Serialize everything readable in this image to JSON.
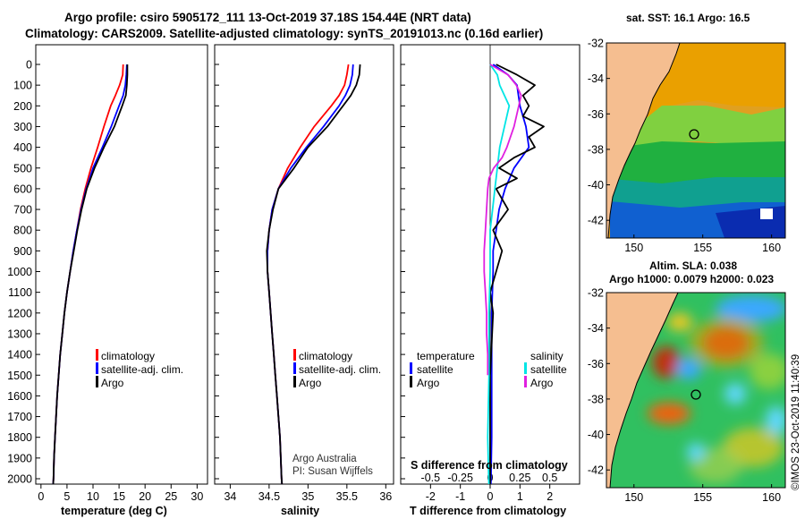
{
  "header": {
    "line1": "Argo profile: csiro 5905172_111 13-Oct-2019 37.18S 154.44E (NRT data)",
    "line2": "Climatology: CARS2009. Satellite-adjusted climatology: synTS_20191013.nc (0.16d earlier)"
  },
  "credit": {
    "line1": "Argo Australia",
    "line2": "PI: Susan Wijffels"
  },
  "watermark": "©IMOS 23-Oct-2019 11:40:39",
  "colors": {
    "climatology": "#ff0000",
    "satellite": "#0000ff",
    "argo": "#000000",
    "sal_satellite": "#00e5e5",
    "sal_argo": "#e020e0",
    "land": "#f5be90"
  },
  "chart_data": [
    {
      "id": "temperature",
      "type": "line",
      "xlabel": "temperature (deg C)",
      "ylabel": "",
      "xlim": [
        -1,
        32
      ],
      "ylim": [
        2080,
        0
      ],
      "xticks": [
        0,
        5,
        10,
        15,
        20,
        25,
        30
      ],
      "yticks": [
        0,
        100,
        200,
        300,
        400,
        500,
        600,
        700,
        800,
        900,
        1000,
        1100,
        1200,
        1300,
        1400,
        1500,
        1600,
        1700,
        1800,
        1900,
        2000
      ],
      "ytick_labels": [
        "0",
        "100",
        "200",
        "300",
        "400",
        "500",
        "600",
        "700",
        "800",
        "900",
        "1000",
        "1100",
        "1200",
        "1300",
        "1400",
        "1500",
        "1600",
        "1700",
        "1800",
        "1900",
        "2000"
      ],
      "legend": [
        "climatology",
        "satellite-adj. clim.",
        "Argo"
      ],
      "series": [
        {
          "name": "climatology",
          "color": "#ff0000",
          "depth": [
            0,
            50,
            100,
            150,
            200,
            300,
            400,
            500,
            600,
            700,
            800,
            900,
            1000,
            1100,
            1200,
            1300,
            1400,
            1500,
            1600,
            1700,
            1800,
            1900,
            2000,
            2050
          ],
          "values": [
            15.8,
            15.7,
            15.1,
            14.3,
            13.4,
            12.1,
            10.9,
            9.6,
            8.5,
            7.6,
            6.9,
            6.2,
            5.6,
            5.0,
            4.5,
            4.1,
            3.7,
            3.4,
            3.1,
            2.9,
            2.7,
            2.5,
            2.4,
            2.3
          ]
        },
        {
          "name": "satellite-adj. clim.",
          "color": "#0000ff",
          "depth": [
            0,
            50,
            100,
            150,
            200,
            300,
            400,
            500,
            600,
            700,
            800,
            900,
            1000,
            1100,
            1200,
            1300,
            1400,
            1500,
            1600,
            1700,
            1800,
            1900,
            2000,
            2050
          ],
          "values": [
            16.5,
            16.4,
            16.2,
            15.8,
            15.0,
            13.5,
            11.8,
            10.0,
            8.7,
            7.7,
            6.9,
            6.2,
            5.6,
            5.0,
            4.5,
            4.1,
            3.7,
            3.4,
            3.1,
            2.9,
            2.7,
            2.5,
            2.4,
            2.3
          ]
        },
        {
          "name": "Argo",
          "color": "#000000",
          "depth": [
            0,
            50,
            100,
            150,
            200,
            300,
            400,
            500,
            600,
            700,
            800,
            900,
            1000,
            1100,
            1200,
            1300,
            1400,
            1500,
            1600,
            1700,
            1800,
            1900,
            2000,
            2050
          ],
          "values": [
            16.6,
            16.6,
            16.5,
            16.3,
            15.6,
            14.1,
            12.1,
            10.3,
            8.8,
            7.8,
            7.0,
            6.3,
            5.6,
            5.0,
            4.5,
            4.1,
            3.7,
            3.4,
            3.1,
            2.9,
            2.7,
            2.5,
            2.4,
            2.3
          ]
        }
      ]
    },
    {
      "id": "salinity",
      "type": "line",
      "xlabel": "salinity",
      "xlim": [
        33.8,
        36.1
      ],
      "ylim": [
        2080,
        0
      ],
      "xticks": [
        34,
        34.5,
        35,
        35.5,
        36
      ],
      "xtick_labels": [
        "34",
        "34.5",
        "35",
        "35.5",
        "36"
      ],
      "legend": [
        "climatology",
        "satellite-adj. clim.",
        "Argo"
      ],
      "series": [
        {
          "name": "climatology",
          "color": "#ff0000",
          "depth": [
            0,
            50,
            100,
            150,
            200,
            300,
            400,
            500,
            600,
            700,
            800,
            900,
            1000,
            1100,
            1200,
            1300,
            1400,
            1500,
            1600,
            1700,
            1800,
            1900,
            2000,
            2050
          ],
          "values": [
            35.52,
            35.5,
            35.47,
            35.4,
            35.3,
            35.08,
            34.9,
            34.74,
            34.62,
            34.54,
            34.5,
            34.48,
            34.48,
            34.5,
            34.52,
            34.54,
            34.56,
            34.58,
            34.6,
            34.62,
            34.64,
            34.65,
            34.66,
            34.67
          ]
        },
        {
          "name": "satellite-adj. clim.",
          "color": "#0000ff",
          "depth": [
            0,
            50,
            100,
            150,
            200,
            300,
            400,
            500,
            600,
            700,
            800,
            900,
            1000,
            1100,
            1200,
            1300,
            1400,
            1500,
            1600,
            1700,
            1800,
            1900,
            2000,
            2050
          ],
          "values": [
            35.58,
            35.57,
            35.54,
            35.48,
            35.4,
            35.2,
            34.98,
            34.78,
            34.62,
            34.54,
            34.5,
            34.48,
            34.48,
            34.5,
            34.52,
            34.54,
            34.56,
            34.58,
            34.6,
            34.62,
            34.64,
            34.65,
            34.66,
            34.67
          ]
        },
        {
          "name": "Argo",
          "color": "#000000",
          "depth": [
            0,
            50,
            100,
            150,
            200,
            300,
            400,
            500,
            600,
            700,
            800,
            900,
            1000,
            1100,
            1200,
            1300,
            1400,
            1500,
            1600,
            1700,
            1800,
            1900,
            2000,
            2050
          ],
          "values": [
            35.67,
            35.66,
            35.62,
            35.55,
            35.45,
            35.25,
            35.0,
            34.82,
            34.62,
            34.55,
            34.5,
            34.47,
            34.48,
            34.5,
            34.52,
            34.54,
            34.56,
            34.58,
            34.6,
            34.62,
            34.64,
            34.65,
            34.66,
            34.67
          ]
        }
      ]
    },
    {
      "id": "difference",
      "type": "line",
      "xlabel": "T difference from climatology",
      "xlabel2": "S difference from climatology",
      "xlim": [
        -3,
        3
      ],
      "ylim": [
        2080,
        0
      ],
      "xticks": [
        -2,
        -1,
        0,
        1,
        2
      ],
      "xtick_labels": [
        "-2",
        "-1",
        "0",
        "1",
        "2"
      ],
      "s_ticks": [
        -0.5,
        -0.25,
        0,
        0.25,
        0.5
      ],
      "s_tick_labels": [
        "-0.5",
        "-0.25",
        "0",
        "0.25",
        "0.5"
      ],
      "legend_titles": [
        "temperature",
        "salinity"
      ],
      "legend_t": [
        "satellite",
        "Argo"
      ],
      "legend_s": [
        "satellite",
        "Argo"
      ],
      "series": [
        {
          "name": "T satellite",
          "color": "#0000ff",
          "depth": [
            0,
            50,
            100,
            200,
            300,
            400,
            500,
            600,
            700,
            800,
            900,
            1000,
            1200,
            1500,
            1800,
            2050
          ],
          "values": [
            0.1,
            0.6,
            0.9,
            1.0,
            1.2,
            1.3,
            0.8,
            0.5,
            0.3,
            0.2,
            0.1,
            0.1,
            0.05,
            0.05,
            0.05,
            0.02
          ]
        },
        {
          "name": "T Argo",
          "color": "#000000",
          "depth": [
            0,
            50,
            100,
            150,
            200,
            250,
            300,
            350,
            400,
            450,
            500,
            550,
            600,
            700,
            800,
            900,
            1000,
            1100,
            1200,
            1500,
            1800,
            2050
          ],
          "values": [
            0.2,
            0.9,
            1.5,
            1.1,
            1.3,
            1.1,
            1.8,
            1.3,
            1.5,
            0.8,
            0.3,
            0.9,
            0.2,
            0.6,
            0.1,
            0.4,
            0.2,
            0.0,
            0.1,
            0.0,
            0.0,
            0.0
          ]
        },
        {
          "name": "S satellite",
          "color": "#00e5e5",
          "depth": [
            0,
            50,
            100,
            200,
            300,
            400,
            500,
            600,
            700,
            800,
            900,
            1000,
            1200,
            1500,
            1800,
            2050
          ],
          "values": [
            0.0,
            0.06,
            0.08,
            0.16,
            0.12,
            0.08,
            0.06,
            0.04,
            0.02,
            0.0,
            0.0,
            0.0,
            -0.01,
            -0.01,
            -0.02,
            -0.01
          ]
        },
        {
          "name": "S Argo",
          "color": "#e020e0",
          "depth": [
            0,
            50,
            100,
            150,
            200,
            300,
            400,
            450,
            500,
            550,
            600,
            700,
            800,
            900,
            1000,
            1100,
            1200,
            1300,
            1400,
            1500
          ],
          "values": [
            0.0,
            0.15,
            0.22,
            0.26,
            0.24,
            0.2,
            0.14,
            0.1,
            0.03,
            -0.01,
            -0.02,
            -0.03,
            -0.04,
            -0.05,
            -0.05,
            -0.04,
            -0.03,
            -0.03,
            -0.02,
            -0.02
          ]
        }
      ]
    },
    {
      "id": "sst_map",
      "type": "heatmap",
      "title": "sat. SST: 16.1  Argo: 16.5",
      "xticks": [
        150,
        155,
        160
      ],
      "yticks": [
        -32,
        -34,
        -36,
        -38,
        -40,
        -42
      ],
      "xlim": [
        148,
        161
      ],
      "ylim": [
        -43,
        -32
      ],
      "argo_position": {
        "lon": 154.44,
        "lat": -37.18
      }
    },
    {
      "id": "sla_map",
      "type": "heatmap",
      "title": "Altim. SLA: 0.038",
      "subtitle": "Argo h1000: 0.0079  h2000: 0.023",
      "xticks": [
        150,
        155,
        160
      ],
      "yticks": [
        -32,
        -34,
        -36,
        -38,
        -40,
        -42
      ],
      "xlim": [
        148,
        161
      ],
      "ylim": [
        -43,
        -32
      ],
      "argo_position": {
        "lon": 154.44,
        "lat": -37.18
      }
    }
  ]
}
